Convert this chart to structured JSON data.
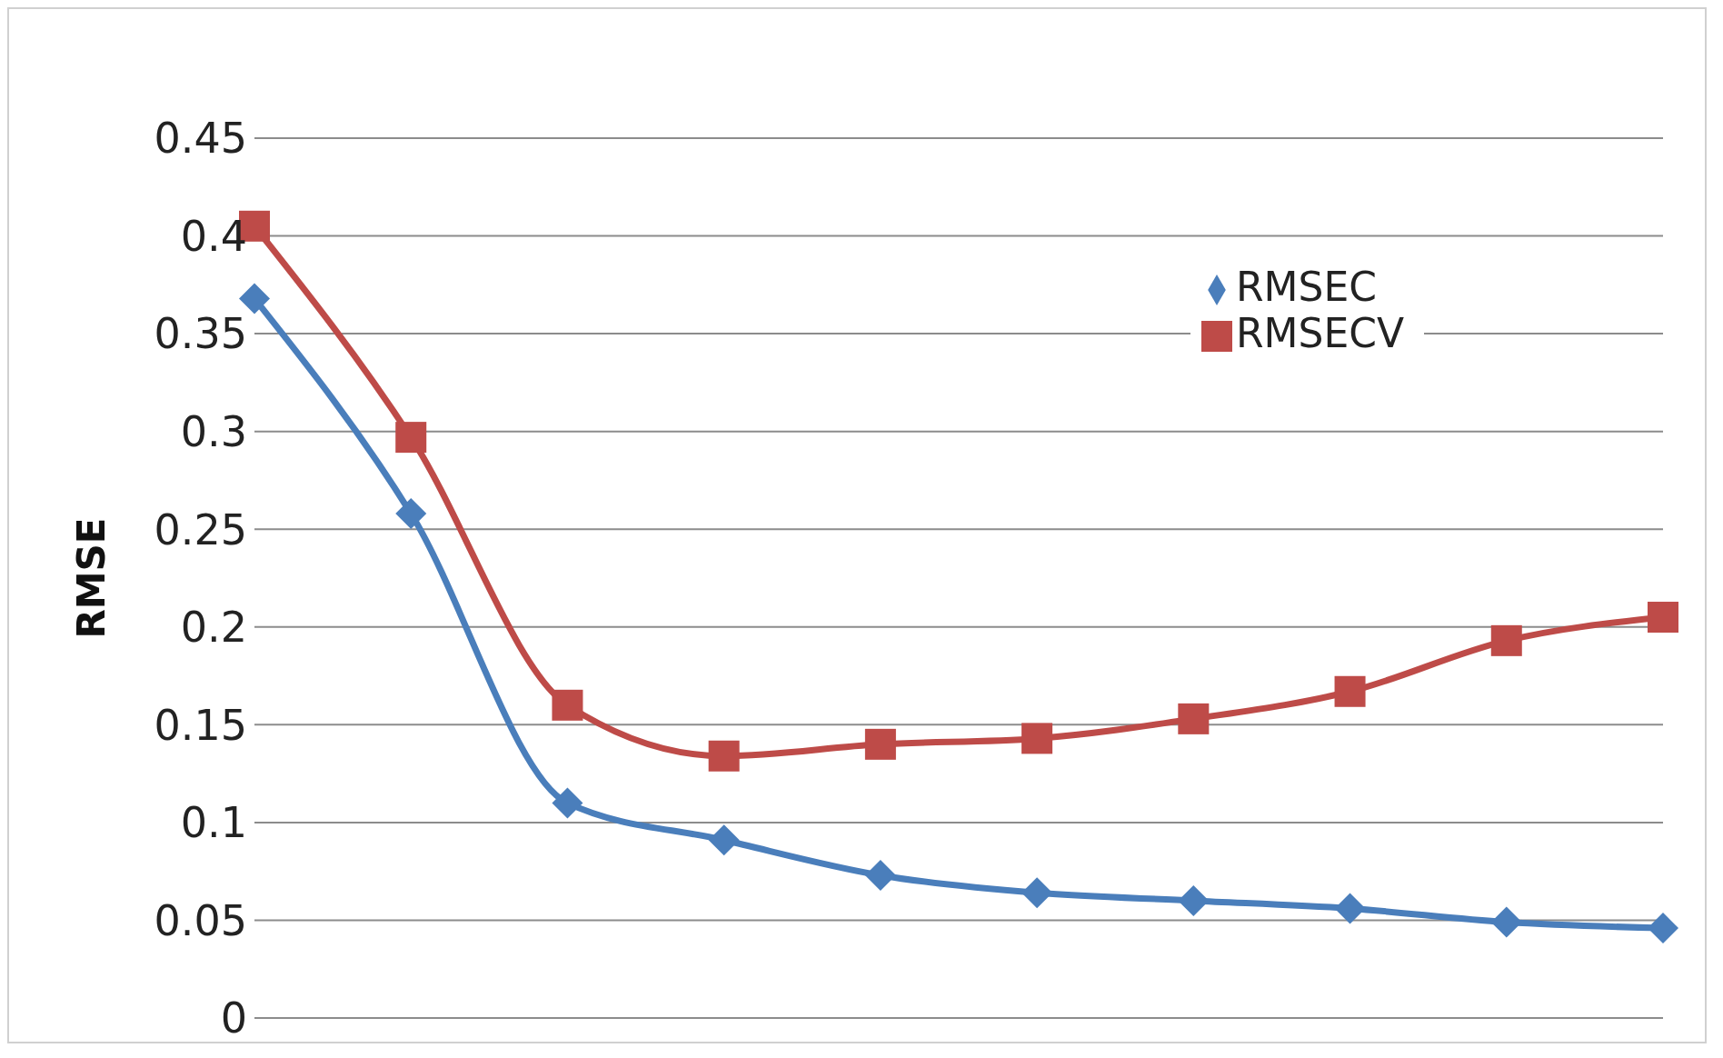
{
  "chart_data": {
    "type": "line",
    "ylabel": "RMSE",
    "categories": [
      null,
      null,
      null,
      null,
      null,
      null,
      null,
      null,
      null,
      null
    ],
    "series": [
      {
        "name": "RMSEC",
        "color": "#4a7ebb",
        "marker": "diamond",
        "values": [
          0.368,
          0.258,
          0.11,
          0.091,
          0.073,
          0.064,
          0.06,
          0.056,
          0.049,
          0.046
        ]
      },
      {
        "name": "RMSECV",
        "color": "#be4b48",
        "marker": "square",
        "values": [
          0.405,
          0.297,
          0.16,
          0.134,
          0.14,
          0.143,
          0.153,
          0.167,
          0.193,
          0.205
        ]
      }
    ],
    "ylim": [
      0,
      0.45
    ],
    "yticks": [
      0,
      0.05,
      0.1,
      0.15,
      0.2,
      0.25,
      0.3,
      0.35,
      0.4,
      0.45
    ],
    "grid": "y",
    "legend": "top right",
    "tick_labels": "y",
    "line_style": "solid"
  }
}
